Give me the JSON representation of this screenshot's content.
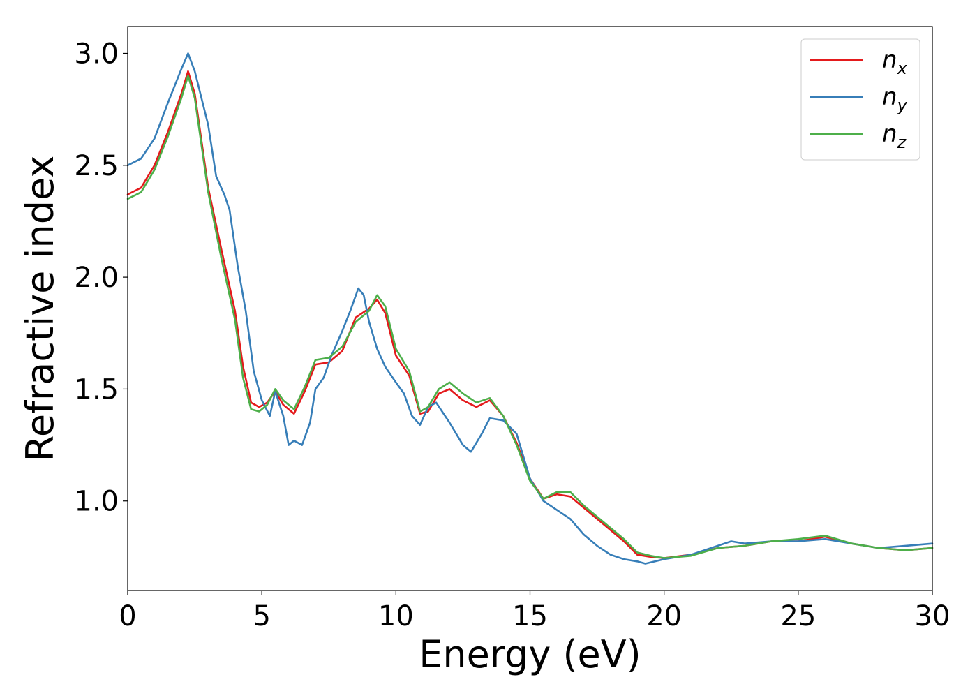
{
  "chart_data": {
    "type": "line",
    "xlabel": "Energy (eV)",
    "ylabel": "Refractive index",
    "xlim": [
      0,
      30
    ],
    "ylim": [
      0.6,
      3.12
    ],
    "xticks": [
      "0",
      "5",
      "10",
      "15",
      "20",
      "25",
      "30"
    ],
    "yticks": [
      "1.0",
      "1.5",
      "2.0",
      "2.5",
      "3.0"
    ],
    "grid": false,
    "legend_position": "top-right",
    "series": [
      {
        "name": "n",
        "subscript": "x",
        "color": "#e41a1c",
        "x": [
          0,
          0.5,
          1,
          1.5,
          2,
          2.25,
          2.5,
          3,
          3.5,
          4,
          4.3,
          4.6,
          4.9,
          5.2,
          5.5,
          5.8,
          6.2,
          6.6,
          7,
          7.5,
          8,
          8.5,
          9,
          9.3,
          9.6,
          10,
          10.5,
          10.9,
          11.2,
          11.6,
          12,
          12.5,
          13,
          13.5,
          14,
          14.5,
          15,
          15.5,
          16,
          16.5,
          17,
          17.5,
          18,
          18.5,
          19,
          19.5,
          20,
          21,
          22,
          23,
          24,
          25,
          26,
          27,
          28,
          29,
          30
        ],
        "values": [
          2.37,
          2.4,
          2.5,
          2.65,
          2.82,
          2.92,
          2.82,
          2.4,
          2.12,
          1.85,
          1.6,
          1.44,
          1.42,
          1.44,
          1.49,
          1.43,
          1.39,
          1.49,
          1.61,
          1.62,
          1.67,
          1.82,
          1.86,
          1.9,
          1.84,
          1.65,
          1.56,
          1.39,
          1.4,
          1.48,
          1.5,
          1.45,
          1.42,
          1.45,
          1.38,
          1.26,
          1.1,
          1.01,
          1.03,
          1.02,
          0.97,
          0.92,
          0.87,
          0.82,
          0.76,
          0.75,
          0.745,
          0.76,
          0.79,
          0.8,
          0.82,
          0.82,
          0.84,
          0.81,
          0.79,
          0.78,
          0.79
        ]
      },
      {
        "name": "n",
        "subscript": "y",
        "color": "#377eb8",
        "x": [
          0,
          0.5,
          1,
          1.5,
          2,
          2.25,
          2.5,
          3,
          3.3,
          3.6,
          3.8,
          4.1,
          4.4,
          4.7,
          5,
          5.3,
          5.5,
          5.8,
          6,
          6.2,
          6.5,
          6.8,
          7,
          7.3,
          7.6,
          8,
          8.3,
          8.6,
          8.8,
          9,
          9.3,
          9.6,
          10,
          10.3,
          10.6,
          10.9,
          11.2,
          11.5,
          12,
          12.5,
          12.8,
          13.2,
          13.5,
          14,
          14.5,
          15,
          15.5,
          16,
          16.5,
          17,
          17.5,
          18,
          18.5,
          19,
          19.3,
          20,
          21,
          22,
          22.5,
          23,
          24,
          25,
          26,
          27,
          28,
          29,
          30
        ],
        "values": [
          2.5,
          2.53,
          2.62,
          2.78,
          2.93,
          3.0,
          2.92,
          2.68,
          2.45,
          2.37,
          2.3,
          2.05,
          1.85,
          1.58,
          1.45,
          1.38,
          1.49,
          1.38,
          1.25,
          1.27,
          1.25,
          1.35,
          1.5,
          1.55,
          1.65,
          1.76,
          1.85,
          1.95,
          1.92,
          1.8,
          1.68,
          1.6,
          1.53,
          1.48,
          1.38,
          1.34,
          1.42,
          1.44,
          1.35,
          1.25,
          1.22,
          1.3,
          1.37,
          1.36,
          1.3,
          1.1,
          1.0,
          0.96,
          0.92,
          0.85,
          0.8,
          0.76,
          0.74,
          0.73,
          0.72,
          0.74,
          0.76,
          0.8,
          0.82,
          0.81,
          0.82,
          0.82,
          0.83,
          0.81,
          0.79,
          0.8,
          0.81
        ]
      },
      {
        "name": "n",
        "subscript": "z",
        "color": "#4daf4a",
        "x": [
          0,
          0.5,
          1,
          1.5,
          2,
          2.25,
          2.5,
          3,
          3.5,
          4,
          4.3,
          4.6,
          4.9,
          5.2,
          5.5,
          5.8,
          6.2,
          6.6,
          7,
          7.5,
          8,
          8.5,
          9,
          9.3,
          9.6,
          10,
          10.5,
          10.9,
          11.2,
          11.6,
          12,
          12.5,
          13,
          13.5,
          14,
          14.5,
          15,
          15.5,
          16,
          16.5,
          17,
          17.5,
          18,
          18.5,
          19,
          19.5,
          20,
          21,
          22,
          23,
          24,
          25,
          26,
          27,
          28,
          29,
          30
        ],
        "values": [
          2.35,
          2.38,
          2.48,
          2.63,
          2.8,
          2.9,
          2.8,
          2.38,
          2.08,
          1.81,
          1.55,
          1.41,
          1.4,
          1.43,
          1.5,
          1.45,
          1.41,
          1.51,
          1.63,
          1.64,
          1.69,
          1.8,
          1.85,
          1.92,
          1.87,
          1.68,
          1.58,
          1.4,
          1.42,
          1.5,
          1.53,
          1.48,
          1.44,
          1.46,
          1.38,
          1.25,
          1.09,
          1.01,
          1.04,
          1.04,
          0.98,
          0.93,
          0.88,
          0.83,
          0.77,
          0.755,
          0.745,
          0.755,
          0.79,
          0.8,
          0.82,
          0.83,
          0.845,
          0.81,
          0.79,
          0.78,
          0.79
        ]
      }
    ]
  }
}
